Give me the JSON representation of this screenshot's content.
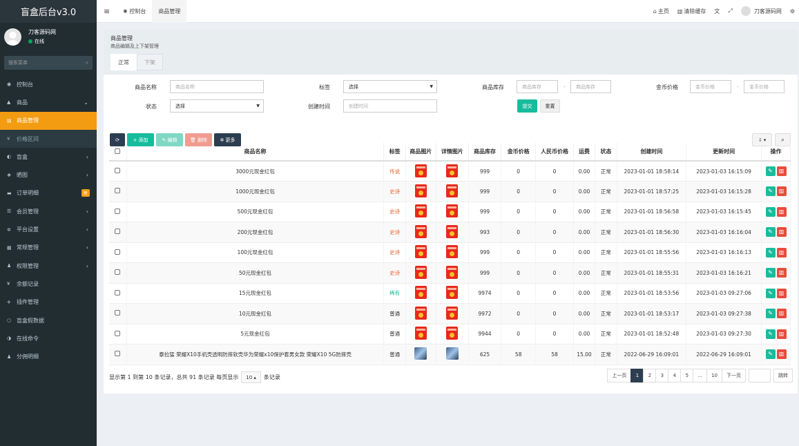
{
  "sidebar": {
    "logo": "盲盒后台v3.0",
    "user_name": "刀客源码网",
    "user_status": "在线",
    "search_placeholder": "搜索菜单",
    "items": [
      {
        "label": "控制台",
        "icon": "dashboard-icon",
        "glyph": "◉",
        "arrow": "",
        "state": ""
      },
      {
        "label": "商品",
        "icon": "shopping-bag-icon",
        "glyph": "▲",
        "arrow": "⌄",
        "state": ""
      },
      {
        "label": "商品管理",
        "icon": "box-icon",
        "glyph": "▤",
        "arrow": "",
        "state": "active"
      },
      {
        "label": "价格区间",
        "icon": "yen-icon",
        "glyph": "¥",
        "arrow": "",
        "state": "sub"
      },
      {
        "label": "盲盒",
        "icon": "cube-icon",
        "glyph": "◐",
        "arrow": "‹",
        "state": ""
      },
      {
        "label": "晒图",
        "icon": "image-icon",
        "glyph": "❖",
        "arrow": "‹",
        "state": ""
      },
      {
        "label": "订单明细",
        "icon": "cart-icon",
        "glyph": "▬",
        "arrow": "",
        "state": "",
        "badge": "新"
      },
      {
        "label": "会员管理",
        "icon": "list-icon",
        "glyph": "☰",
        "arrow": "‹",
        "state": ""
      },
      {
        "label": "平台设置",
        "icon": "gear-icon",
        "glyph": "✲",
        "arrow": "‹",
        "state": ""
      },
      {
        "label": "常规管理",
        "icon": "settings-list-icon",
        "glyph": "▦",
        "arrow": "‹",
        "state": ""
      },
      {
        "label": "权限管理",
        "icon": "group-icon",
        "glyph": "♟",
        "arrow": "‹",
        "state": ""
      },
      {
        "label": "余额记录",
        "icon": "yen-icon",
        "glyph": "¥",
        "arrow": "",
        "state": ""
      },
      {
        "label": "插件管理",
        "icon": "rocket-icon",
        "glyph": "✈",
        "arrow": "",
        "state": ""
      },
      {
        "label": "盲盒假数据",
        "icon": "circle-icon",
        "glyph": "○",
        "arrow": "",
        "state": ""
      },
      {
        "label": "在线命令",
        "icon": "terminal-icon",
        "glyph": "◑",
        "arrow": "",
        "state": ""
      },
      {
        "label": "分佣明细",
        "icon": "users-icon",
        "glyph": "♟",
        "arrow": "",
        "state": ""
      }
    ]
  },
  "topbar": {
    "menu_toggle": "≡",
    "tabs": [
      {
        "label": "控制台",
        "glyph": "◉"
      },
      {
        "label": "商品管理",
        "glyph": ""
      }
    ],
    "home": "主页",
    "clear_cache": "清除缓存",
    "user": "刀客源码网"
  },
  "panel": {
    "title": "商品管理",
    "subtitle": "商品编辑及上下架管理",
    "tabs": [
      "正常",
      "下架"
    ]
  },
  "filters": {
    "name_label": "商品名称",
    "name_placeholder": "商品名称",
    "tag_label": "标签",
    "tag_value": "选择",
    "stock_label": "商品库存",
    "stock_placeholder": "商品库存",
    "coin_label": "金币价格",
    "coin_placeholder": "金币价格",
    "status_label": "状态",
    "status_value": "选择",
    "created_label": "创建时间",
    "created_placeholder": "创建时间",
    "dash": "-",
    "submit": "提交",
    "reset": "重置"
  },
  "toolbar": {
    "refresh": "⟳",
    "add": "+ 添加",
    "edit": "✎ 编辑",
    "delete": "🗑 删除",
    "more": "✲ 更多",
    "export": "⇩ ▾",
    "search": "⌕"
  },
  "table": {
    "headers": [
      "商品名称",
      "标签",
      "商品图片",
      "详情图片",
      "商品库存",
      "金币价格",
      "人民币价格",
      "运费",
      "状态",
      "创建时间",
      "更新时间",
      "操作"
    ],
    "rows": [
      {
        "name": "3000元现金红包",
        "tag": "传说",
        "tagc": "red",
        "img": "redpack",
        "stock": "999",
        "coin": "0",
        "rmb": "0",
        "ship": "0.00",
        "status": "正常",
        "created": "2023-01-01 18:58:14",
        "updated": "2023-01-03 16:15:09"
      },
      {
        "name": "1000元现金红包",
        "tag": "史诗",
        "tagc": "red",
        "img": "redpack",
        "stock": "999",
        "coin": "0",
        "rmb": "0",
        "ship": "0.00",
        "status": "正常",
        "created": "2023-01-01 18:57:25",
        "updated": "2023-01-03 16:15:28"
      },
      {
        "name": "500元现金红包",
        "tag": "史诗",
        "tagc": "red",
        "img": "redpack",
        "stock": "999",
        "coin": "0",
        "rmb": "0",
        "ship": "0.00",
        "status": "正常",
        "created": "2023-01-01 18:56:58",
        "updated": "2023-01-03 16:15:45"
      },
      {
        "name": "200元现金红包",
        "tag": "史诗",
        "tagc": "red",
        "img": "redpack",
        "stock": "993",
        "coin": "0",
        "rmb": "0",
        "ship": "0.00",
        "status": "正常",
        "created": "2023-01-01 18:56:30",
        "updated": "2023-01-03 16:16:04"
      },
      {
        "name": "100元现金红包",
        "tag": "史诗",
        "tagc": "red",
        "img": "redpack",
        "stock": "999",
        "coin": "0",
        "rmb": "0",
        "ship": "0.00",
        "status": "正常",
        "created": "2023-01-01 18:55:56",
        "updated": "2023-01-03 16:16:13"
      },
      {
        "name": "50元现金红包",
        "tag": "史诗",
        "tagc": "red",
        "img": "redpack",
        "stock": "999",
        "coin": "0",
        "rmb": "0",
        "ship": "0.00",
        "status": "正常",
        "created": "2023-01-01 18:55:31",
        "updated": "2023-01-03 16:16:21"
      },
      {
        "name": "15元现金红包",
        "tag": "稀有",
        "tagc": "green",
        "img": "redpack",
        "stock": "9974",
        "coin": "0",
        "rmb": "0",
        "ship": "0.00",
        "status": "正常",
        "created": "2023-01-01 18:53:56",
        "updated": "2023-01-03 09:27:06"
      },
      {
        "name": "10元现金红包",
        "tag": "普通",
        "tagc": "",
        "img": "redpack",
        "stock": "9972",
        "coin": "0",
        "rmb": "0",
        "ship": "0.00",
        "status": "正常",
        "created": "2023-01-01 18:53:17",
        "updated": "2023-01-03 09:27:38"
      },
      {
        "name": "5元现金红包",
        "tag": "普通",
        "tagc": "",
        "img": "redpack",
        "stock": "9944",
        "coin": "0",
        "rmb": "0",
        "ship": "0.00",
        "status": "正常",
        "created": "2023-01-01 18:52:48",
        "updated": "2023-01-03 09:27:30"
      },
      {
        "name": "泰拉猛 荣耀X10手机壳透明防摔软壳华为荣耀x10保护套男女款 荣耀X10 5G防摔壳",
        "tag": "普通",
        "tagc": "",
        "img": "phone",
        "stock": "625",
        "coin": "58",
        "rmb": "58",
        "ship": "15.00",
        "status": "正常",
        "created": "2022-06-29 16:09:01",
        "updated": "2022-06-29 16:09:01"
      }
    ]
  },
  "pagination": {
    "info_prefix": "显示第 1 到第 10 条记录，总共 91 条记录 每页显示",
    "page_size": "10 ▴",
    "info_suffix": "条记录",
    "prev": "上一页",
    "pages": [
      "1",
      "2",
      "3",
      "4",
      "5",
      "...",
      "10"
    ],
    "next": "下一页",
    "jump": "跳转"
  }
}
